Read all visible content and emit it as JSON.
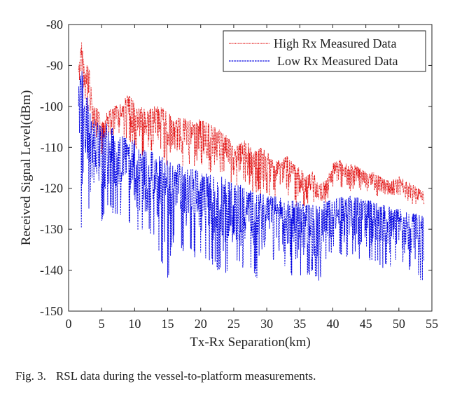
{
  "chart_data": {
    "type": "line",
    "xlabel": "Tx-Rx Separation(km)",
    "ylabel": "Received Signal Level(dBm)",
    "xlim": [
      0,
      55
    ],
    "ylim": [
      -150,
      -80
    ],
    "x_ticks": [
      0,
      5,
      10,
      15,
      20,
      25,
      30,
      35,
      40,
      45,
      50,
      55
    ],
    "y_ticks": [
      -80,
      -90,
      -100,
      -110,
      -120,
      -130,
      -140,
      -150
    ],
    "x_tick_labels": [
      "0",
      "5",
      "10",
      "15",
      "20",
      "25",
      "30",
      "35",
      "40",
      "45",
      "50",
      "55"
    ],
    "y_tick_labels": [
      "-80",
      "-90",
      "-100",
      "-110",
      "-120",
      "-130",
      "-140",
      "-150"
    ],
    "grid": false,
    "legend_position": "top-right",
    "series": [
      {
        "name": "High Rx Measured Data",
        "color": "#e00000",
        "style": "dotted",
        "x": [
          1.5,
          2,
          2.5,
          3,
          3.5,
          4,
          4.5,
          5,
          6,
          7,
          8,
          9,
          10,
          11,
          12,
          13,
          14,
          15,
          16,
          17,
          18,
          19,
          20,
          21,
          22,
          23,
          24,
          25,
          26,
          27,
          28,
          29,
          30,
          31,
          32,
          33,
          34,
          35,
          36,
          37,
          38,
          39,
          40,
          41,
          42,
          43,
          44,
          45,
          46,
          47,
          48,
          49,
          50,
          51,
          52,
          53,
          53.8
        ],
        "y": [
          -90,
          -84,
          -92,
          -88,
          -97,
          -100,
          -101,
          -103,
          -101,
          -100,
          -99,
          -97,
          -99,
          -100,
          -101,
          -100,
          -100,
          -101,
          -104,
          -102,
          -103,
          -104,
          -103,
          -104,
          -105,
          -106,
          -107,
          -110,
          -109,
          -108,
          -111,
          -110,
          -111,
          -113,
          -113,
          -112,
          -114,
          -115,
          -117,
          -116,
          -119,
          -118,
          -114,
          -113,
          -114,
          -114,
          -115,
          -116,
          -116,
          -117,
          -118,
          -118,
          -117,
          -118,
          -119,
          -120,
          -121
        ],
        "lower_x": [
          1.5,
          2,
          2.5,
          3,
          3.5,
          4,
          4.5,
          5,
          6,
          7,
          8,
          9,
          10,
          11,
          12,
          13,
          14,
          15,
          16,
          17,
          18,
          19,
          20,
          21,
          22,
          23,
          24,
          25,
          26,
          27,
          28,
          29,
          30,
          31,
          32,
          33,
          34,
          35,
          36,
          37,
          38,
          39,
          40,
          41,
          42,
          43,
          44,
          45,
          46,
          47,
          48,
          49,
          50,
          51,
          52,
          53,
          53.8
        ],
        "lower_y": [
          -95,
          -96,
          -100,
          -103,
          -106,
          -108,
          -107,
          -112,
          -108,
          -107,
          -107,
          -109,
          -110,
          -113,
          -112,
          -110,
          -112,
          -115,
          -114,
          -115,
          -116,
          -115,
          -115,
          -117,
          -116,
          -117,
          -118,
          -120,
          -119,
          -120,
          -121,
          -122,
          -121,
          -123,
          -122,
          -123,
          -124,
          -125,
          -125,
          -124,
          -125,
          -124,
          -120,
          -120,
          -120,
          -121,
          -121,
          -121,
          -122,
          -122,
          -123,
          -123,
          -123,
          -123,
          -124,
          -124,
          -125
        ]
      },
      {
        "name": "Low Rx Measured Data",
        "color": "#0000e0",
        "style": "dashed",
        "x": [
          1.5,
          2,
          2.5,
          3,
          3.5,
          4,
          4.5,
          5,
          6,
          7,
          8,
          9,
          10,
          11,
          12,
          13,
          14,
          15,
          16,
          17,
          18,
          19,
          20,
          21,
          22,
          23,
          24,
          25,
          26,
          27,
          28,
          29,
          30,
          31,
          32,
          33,
          34,
          35,
          36,
          37,
          38,
          39,
          40,
          41,
          42,
          43,
          44,
          45,
          46,
          47,
          48,
          49,
          50,
          51,
          52,
          53,
          53.8
        ],
        "y": [
          -94,
          -90,
          -96,
          -98,
          -102,
          -103,
          -104,
          -105,
          -104,
          -106,
          -107,
          -108,
          -108,
          -110,
          -111,
          -111,
          -112,
          -113,
          -114,
          -114,
          -115,
          -115,
          -116,
          -116,
          -116,
          -117,
          -118,
          -119,
          -119,
          -120,
          -121,
          -121,
          -122,
          -122,
          -122,
          -123,
          -123,
          -123,
          -124,
          -124,
          -123,
          -123,
          -123,
          -122,
          -122,
          -122,
          -122,
          -123,
          -123,
          -124,
          -124,
          -125,
          -125,
          -125,
          -126,
          -126,
          -127
        ],
        "lower_x": [
          1.5,
          2,
          2.5,
          3,
          3.5,
          4,
          4.5,
          5,
          6,
          7,
          8,
          9,
          10,
          11,
          12,
          13,
          14,
          15,
          16,
          17,
          18,
          19,
          20,
          21,
          22,
          23,
          24,
          25,
          26,
          27,
          28,
          29,
          30,
          31,
          32,
          33,
          34,
          35,
          36,
          37,
          38,
          39,
          40,
          41,
          42,
          43,
          44,
          45,
          46,
          47,
          48,
          49,
          50,
          51,
          52,
          53,
          53.8
        ],
        "lower_y": [
          -106,
          -134,
          -118,
          -126,
          -119,
          -121,
          -122,
          -128,
          -125,
          -127,
          -128,
          -129,
          -131,
          -132,
          -131,
          -133,
          -138,
          -143,
          -132,
          -135,
          -136,
          -137,
          -136,
          -138,
          -139,
          -141,
          -142,
          -137,
          -139,
          -140,
          -141,
          -143,
          -138,
          -139,
          -140,
          -141,
          -142,
          -143,
          -141,
          -142,
          -143,
          -138,
          -136,
          -137,
          -137,
          -137,
          -138,
          -138,
          -139,
          -139,
          -140,
          -140,
          -139,
          -140,
          -141,
          -142,
          -143
        ]
      }
    ]
  },
  "caption": {
    "label": "Fig. 3.",
    "text": "RSL data during the vessel-to-platform measurements."
  }
}
